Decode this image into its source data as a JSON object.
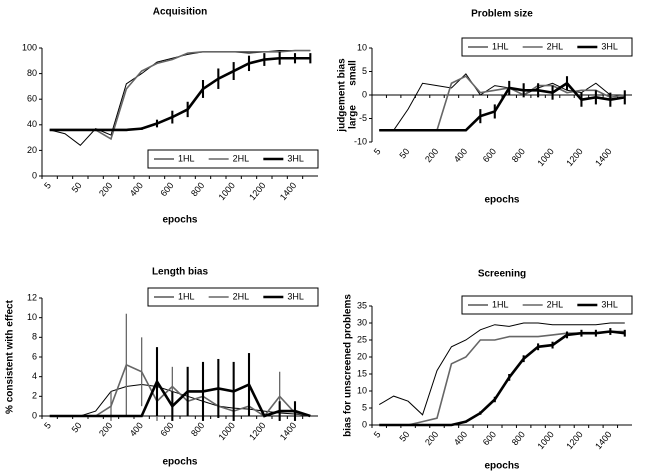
{
  "chart_data": [
    {
      "type": "line",
      "title": "Acquisition",
      "x_label": "epochs",
      "categories": [
        "5",
        null,
        "50",
        null,
        "200",
        null,
        "400",
        null,
        "600",
        null,
        "800",
        null,
        "1000",
        null,
        "1200",
        null,
        "1400",
        null
      ],
      "ylim": [
        0,
        100
      ],
      "yticks": [
        0,
        20,
        40,
        60,
        80,
        100
      ],
      "legend": "lower right",
      "series": [
        {
          "name": "1HL",
          "color": "#000000",
          "line_width": 1,
          "values": [
            36,
            33,
            24,
            37,
            32,
            72,
            80,
            89,
            92,
            95,
            97,
            97,
            97,
            96,
            97,
            98,
            98,
            98
          ]
        },
        {
          "name": "2HL",
          "color": "#666666",
          "line_width": 1.6,
          "values": [
            36,
            36,
            36,
            36,
            29,
            68,
            82,
            88,
            91,
            96,
            97,
            97,
            97,
            97,
            97,
            97,
            98,
            98
          ]
        },
        {
          "name": "3HL",
          "color": "#000000",
          "line_width": 2.6,
          "values": [
            36,
            36,
            36,
            36,
            36,
            36,
            37,
            41,
            46,
            52,
            68,
            76,
            82,
            88,
            91,
            92,
            92,
            92
          ],
          "errors": [
            0,
            0,
            0,
            0,
            0,
            0,
            1,
            3,
            5,
            6,
            7,
            8,
            7,
            6,
            5,
            5,
            4,
            4
          ]
        }
      ]
    },
    {
      "type": "line",
      "title": "Problem size",
      "x_label": "epochs",
      "y_label": "judgement bias",
      "annotations": [
        "small",
        "large"
      ],
      "categories": [
        "5",
        null,
        "50",
        null,
        "200",
        null,
        "400",
        null,
        "600",
        null,
        "800",
        null,
        "1000",
        null,
        "1200",
        null,
        "1400",
        null
      ],
      "ylim": [
        -10,
        10
      ],
      "yticks": [
        -10,
        -5,
        0,
        5,
        10
      ],
      "legend": "upper right",
      "series": [
        {
          "name": "1HL",
          "color": "#000000",
          "line_width": 1,
          "values": [
            -7.5,
            -7.5,
            -3,
            2.5,
            2,
            1.5,
            4.5,
            0,
            2,
            1.5,
            0,
            1.5,
            2.5,
            1,
            0.5,
            2.5,
            0,
            0
          ]
        },
        {
          "name": "2HL",
          "color": "#666666",
          "line_width": 1.6,
          "values": [
            -7.5,
            -7.5,
            -7.5,
            -7.5,
            -7.5,
            2.5,
            4,
            0.5,
            1,
            1.5,
            0,
            2,
            2,
            0.5,
            1,
            1,
            -0.5,
            0
          ]
        },
        {
          "name": "3HL",
          "color": "#000000",
          "line_width": 2.6,
          "values": [
            -7.5,
            -7.5,
            -7.5,
            -7.5,
            -7.5,
            -7.5,
            -7.5,
            -4.5,
            -3.5,
            1.5,
            1,
            1,
            0.5,
            2.5,
            -1,
            -0.5,
            -1,
            -0.5
          ],
          "errors": [
            0,
            0,
            0,
            0,
            0,
            0,
            0,
            1.5,
            1.5,
            1.5,
            1.5,
            1.5,
            1.5,
            1.5,
            1.5,
            1.5,
            1.5,
            1.5
          ]
        }
      ]
    },
    {
      "type": "line",
      "title": "Length bias",
      "x_label": "epochs",
      "y_label": "% consistent with effect",
      "categories": [
        "5",
        null,
        "50",
        null,
        "200",
        null,
        "400",
        null,
        "600",
        null,
        "800",
        null,
        "1000",
        null,
        "1200",
        null,
        "1400",
        null
      ],
      "ylim": [
        0,
        12
      ],
      "yticks": [
        0,
        2,
        4,
        6,
        8,
        10,
        12
      ],
      "legend": "upper right",
      "series": [
        {
          "name": "1HL",
          "color": "#000000",
          "line_width": 1,
          "values": [
            0,
            0,
            0,
            0.5,
            2.5,
            3,
            3.2,
            3,
            2.5,
            2,
            1.5,
            1,
            0.8,
            0.7,
            0.5,
            0.3,
            0.2,
            0
          ]
        },
        {
          "name": "2HL",
          "color": "#666666",
          "line_width": 1.6,
          "values": [
            0,
            0,
            0,
            0,
            1,
            5.2,
            4.5,
            1.5,
            3,
            1.5,
            2,
            1,
            0.5,
            1,
            0,
            2,
            0.3,
            0
          ],
          "errors": [
            0,
            0,
            0,
            0,
            1.5,
            5.2,
            3.5,
            2,
            2,
            1,
            1.5,
            1,
            1,
            1,
            0,
            2.5,
            0.5,
            0
          ]
        },
        {
          "name": "3HL",
          "color": "#000000",
          "line_width": 2.6,
          "values": [
            0,
            0,
            0,
            0,
            0,
            0,
            0,
            3.5,
            1,
            2.5,
            2.5,
            2.8,
            2.5,
            3.2,
            0,
            0.5,
            0.5,
            0
          ],
          "errors": [
            0,
            0,
            0,
            0,
            0,
            0,
            0,
            3.5,
            1.5,
            2.5,
            3,
            3,
            3,
            3.2,
            0,
            1,
            1,
            0
          ]
        }
      ]
    },
    {
      "type": "line",
      "title": "Screening",
      "x_label": "epochs",
      "y_label": "bias for unscreened problems",
      "categories": [
        "5",
        null,
        "50",
        null,
        "200",
        null,
        "400",
        null,
        "600",
        null,
        "800",
        null,
        "1000",
        null,
        "1200",
        null,
        "1400",
        null
      ],
      "ylim": [
        0,
        35
      ],
      "yticks": [
        0,
        5,
        10,
        15,
        20,
        25,
        30,
        35
      ],
      "legend": "upper right",
      "series": [
        {
          "name": "1HL",
          "color": "#000000",
          "line_width": 1,
          "values": [
            6,
            8.5,
            7,
            3,
            16,
            23,
            25,
            28,
            29.5,
            29,
            30,
            30,
            29.5,
            29.5,
            29.5,
            29.5,
            30,
            30
          ]
        },
        {
          "name": "2HL",
          "color": "#666666",
          "line_width": 1.6,
          "values": [
            0,
            0,
            0,
            1,
            2,
            18,
            20,
            25,
            25,
            26,
            26,
            26,
            26.5,
            27,
            27,
            27,
            27.5,
            27.5
          ]
        },
        {
          "name": "3HL",
          "color": "#000000",
          "line_width": 2.6,
          "values": [
            0,
            0,
            0,
            0,
            0,
            0,
            1,
            3.5,
            7.5,
            14,
            19.5,
            23,
            23.5,
            26.5,
            27,
            27,
            27.5,
            27
          ],
          "errors": [
            0,
            0,
            0,
            0,
            0,
            0,
            0.3,
            0.5,
            0.8,
            1,
            1,
            1,
            1,
            1,
            1,
            1,
            1,
            1
          ]
        }
      ]
    }
  ]
}
